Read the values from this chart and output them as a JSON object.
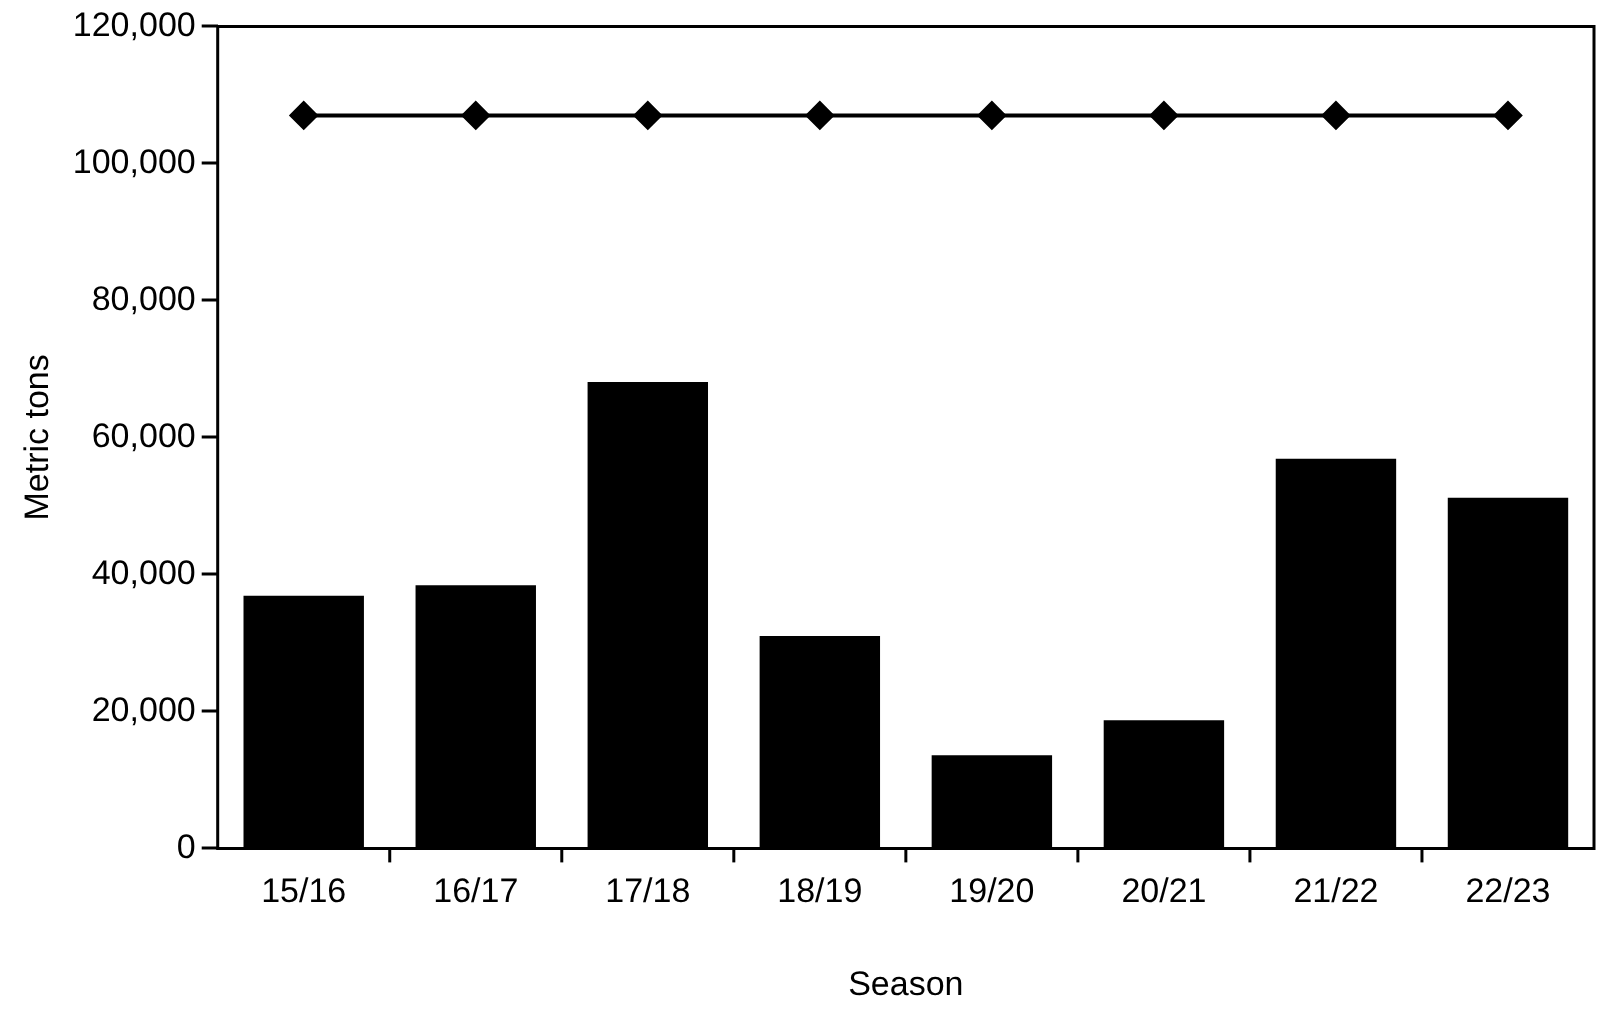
{
  "chart_data": {
    "type": "bar",
    "xlabel": "Season",
    "ylabel": "Metric tons",
    "categories": [
      "15/16",
      "16/17",
      "17/18",
      "18/19",
      "19/20",
      "20/21",
      "21/22",
      "22/23"
    ],
    "series": [
      {
        "color": "#000000",
        "values": [
          36900,
          38400,
          68100,
          31000,
          13600,
          18700,
          56900,
          51200
        ]
      },
      {
        "type": "line",
        "color": "#000000",
        "marker": "diamond",
        "line_style": "solid",
        "values": [
          107000,
          107000,
          107000,
          107000,
          107000,
          107000,
          107000,
          107000
        ]
      }
    ],
    "ylim": [
      0,
      120000
    ],
    "yticks": [
      {
        "value": 0,
        "label": "0"
      },
      {
        "value": 20000,
        "label": "20,000"
      },
      {
        "value": 40000,
        "label": "40,000"
      },
      {
        "value": 60000,
        "label": "60,000"
      },
      {
        "value": 80000,
        "label": "80,000"
      },
      {
        "value": 100000,
        "label": "100,000"
      },
      {
        "value": 120000,
        "label": "120,000"
      }
    ],
    "grid": false,
    "legend": false
  }
}
